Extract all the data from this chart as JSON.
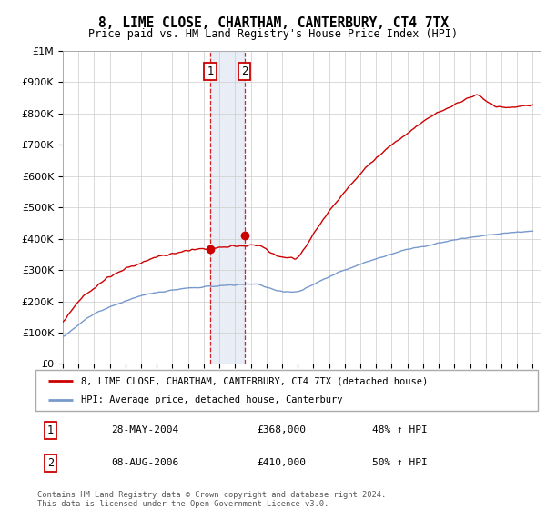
{
  "title": "8, LIME CLOSE, CHARTHAM, CANTERBURY, CT4 7TX",
  "subtitle": "Price paid vs. HM Land Registry's House Price Index (HPI)",
  "ylabel_ticks": [
    "£0",
    "£100K",
    "£200K",
    "£300K",
    "£400K",
    "£500K",
    "£600K",
    "£700K",
    "£800K",
    "£900K",
    "£1M"
  ],
  "ylim": [
    0,
    1000000
  ],
  "xlim_start": 1995.0,
  "xlim_end": 2025.5,
  "x_ticks": [
    1995,
    1996,
    1997,
    1998,
    1999,
    2000,
    2001,
    2002,
    2003,
    2004,
    2005,
    2006,
    2007,
    2008,
    2009,
    2010,
    2011,
    2012,
    2013,
    2014,
    2015,
    2016,
    2017,
    2018,
    2019,
    2020,
    2021,
    2022,
    2023,
    2024,
    2025
  ],
  "hpi_color": "#7799cc",
  "price_color": "#cc0000",
  "sale1_x": 2004.41,
  "sale1_y": 368000,
  "sale2_x": 2006.59,
  "sale2_y": 410000,
  "sale1_label": "1",
  "sale2_label": "2",
  "shade_color": "#c0d0e8",
  "dashed_color": "#cc0000",
  "legend_line1": "8, LIME CLOSE, CHARTHAM, CANTERBURY, CT4 7TX (detached house)",
  "legend_line2": "HPI: Average price, detached house, Canterbury",
  "table_row1_num": "1",
  "table_row1_date": "28-MAY-2004",
  "table_row1_price": "£368,000",
  "table_row1_hpi": "48% ↑ HPI",
  "table_row2_num": "2",
  "table_row2_date": "08-AUG-2006",
  "table_row2_price": "£410,000",
  "table_row2_hpi": "50% ↑ HPI",
  "footnote1": "Contains HM Land Registry data © Crown copyright and database right 2024.",
  "footnote2": "This data is licensed under the Open Government Licence v3.0.",
  "background_color": "#ffffff",
  "grid_color": "#cccccc"
}
